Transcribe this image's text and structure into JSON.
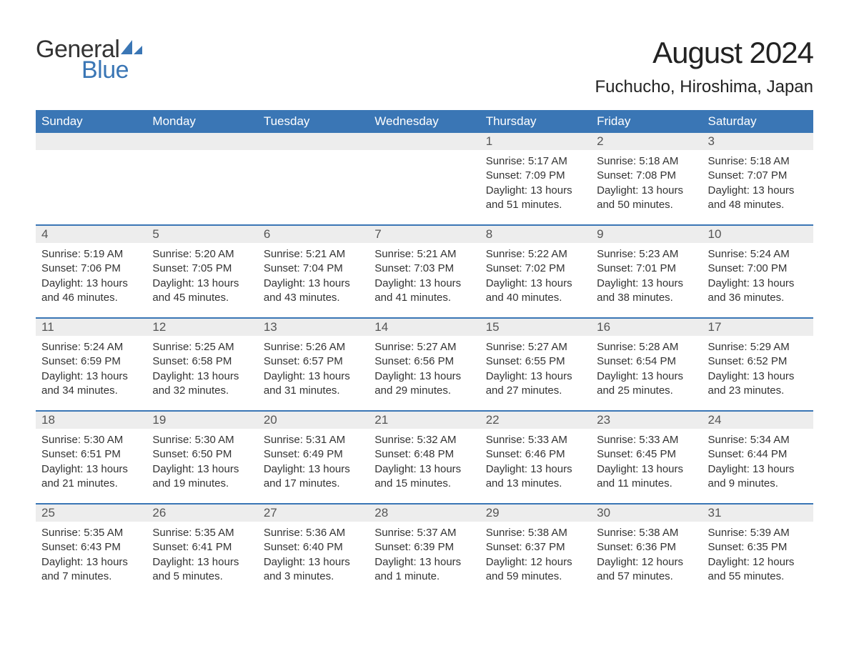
{
  "brand": {
    "general": "General",
    "blue": "Blue",
    "sail_color": "#3a76b5"
  },
  "header": {
    "month_title": "August 2024",
    "location": "Fuchucho, Hiroshima, Japan"
  },
  "styles": {
    "header_bg": "#3a76b5",
    "header_text": "#ffffff",
    "daynum_bg": "#ededed",
    "week_divider": "#3a76b5",
    "body_text": "#333333",
    "title_fontsize_pt": 32,
    "location_fontsize_pt": 18,
    "dow_fontsize_pt": 13,
    "body_fontsize_pt": 11
  },
  "days_of_week": [
    "Sunday",
    "Monday",
    "Tuesday",
    "Wednesday",
    "Thursday",
    "Friday",
    "Saturday"
  ],
  "weeks": [
    [
      {
        "empty": true
      },
      {
        "empty": true
      },
      {
        "empty": true
      },
      {
        "empty": true
      },
      {
        "day": "1",
        "sunrise": "Sunrise: 5:17 AM",
        "sunset": "Sunset: 7:09 PM",
        "daylight": "Daylight: 13 hours and 51 minutes."
      },
      {
        "day": "2",
        "sunrise": "Sunrise: 5:18 AM",
        "sunset": "Sunset: 7:08 PM",
        "daylight": "Daylight: 13 hours and 50 minutes."
      },
      {
        "day": "3",
        "sunrise": "Sunrise: 5:18 AM",
        "sunset": "Sunset: 7:07 PM",
        "daylight": "Daylight: 13 hours and 48 minutes."
      }
    ],
    [
      {
        "day": "4",
        "sunrise": "Sunrise: 5:19 AM",
        "sunset": "Sunset: 7:06 PM",
        "daylight": "Daylight: 13 hours and 46 minutes."
      },
      {
        "day": "5",
        "sunrise": "Sunrise: 5:20 AM",
        "sunset": "Sunset: 7:05 PM",
        "daylight": "Daylight: 13 hours and 45 minutes."
      },
      {
        "day": "6",
        "sunrise": "Sunrise: 5:21 AM",
        "sunset": "Sunset: 7:04 PM",
        "daylight": "Daylight: 13 hours and 43 minutes."
      },
      {
        "day": "7",
        "sunrise": "Sunrise: 5:21 AM",
        "sunset": "Sunset: 7:03 PM",
        "daylight": "Daylight: 13 hours and 41 minutes."
      },
      {
        "day": "8",
        "sunrise": "Sunrise: 5:22 AM",
        "sunset": "Sunset: 7:02 PM",
        "daylight": "Daylight: 13 hours and 40 minutes."
      },
      {
        "day": "9",
        "sunrise": "Sunrise: 5:23 AM",
        "sunset": "Sunset: 7:01 PM",
        "daylight": "Daylight: 13 hours and 38 minutes."
      },
      {
        "day": "10",
        "sunrise": "Sunrise: 5:24 AM",
        "sunset": "Sunset: 7:00 PM",
        "daylight": "Daylight: 13 hours and 36 minutes."
      }
    ],
    [
      {
        "day": "11",
        "sunrise": "Sunrise: 5:24 AM",
        "sunset": "Sunset: 6:59 PM",
        "daylight": "Daylight: 13 hours and 34 minutes."
      },
      {
        "day": "12",
        "sunrise": "Sunrise: 5:25 AM",
        "sunset": "Sunset: 6:58 PM",
        "daylight": "Daylight: 13 hours and 32 minutes."
      },
      {
        "day": "13",
        "sunrise": "Sunrise: 5:26 AM",
        "sunset": "Sunset: 6:57 PM",
        "daylight": "Daylight: 13 hours and 31 minutes."
      },
      {
        "day": "14",
        "sunrise": "Sunrise: 5:27 AM",
        "sunset": "Sunset: 6:56 PM",
        "daylight": "Daylight: 13 hours and 29 minutes."
      },
      {
        "day": "15",
        "sunrise": "Sunrise: 5:27 AM",
        "sunset": "Sunset: 6:55 PM",
        "daylight": "Daylight: 13 hours and 27 minutes."
      },
      {
        "day": "16",
        "sunrise": "Sunrise: 5:28 AM",
        "sunset": "Sunset: 6:54 PM",
        "daylight": "Daylight: 13 hours and 25 minutes."
      },
      {
        "day": "17",
        "sunrise": "Sunrise: 5:29 AM",
        "sunset": "Sunset: 6:52 PM",
        "daylight": "Daylight: 13 hours and 23 minutes."
      }
    ],
    [
      {
        "day": "18",
        "sunrise": "Sunrise: 5:30 AM",
        "sunset": "Sunset: 6:51 PM",
        "daylight": "Daylight: 13 hours and 21 minutes."
      },
      {
        "day": "19",
        "sunrise": "Sunrise: 5:30 AM",
        "sunset": "Sunset: 6:50 PM",
        "daylight": "Daylight: 13 hours and 19 minutes."
      },
      {
        "day": "20",
        "sunrise": "Sunrise: 5:31 AM",
        "sunset": "Sunset: 6:49 PM",
        "daylight": "Daylight: 13 hours and 17 minutes."
      },
      {
        "day": "21",
        "sunrise": "Sunrise: 5:32 AM",
        "sunset": "Sunset: 6:48 PM",
        "daylight": "Daylight: 13 hours and 15 minutes."
      },
      {
        "day": "22",
        "sunrise": "Sunrise: 5:33 AM",
        "sunset": "Sunset: 6:46 PM",
        "daylight": "Daylight: 13 hours and 13 minutes."
      },
      {
        "day": "23",
        "sunrise": "Sunrise: 5:33 AM",
        "sunset": "Sunset: 6:45 PM",
        "daylight": "Daylight: 13 hours and 11 minutes."
      },
      {
        "day": "24",
        "sunrise": "Sunrise: 5:34 AM",
        "sunset": "Sunset: 6:44 PM",
        "daylight": "Daylight: 13 hours and 9 minutes."
      }
    ],
    [
      {
        "day": "25",
        "sunrise": "Sunrise: 5:35 AM",
        "sunset": "Sunset: 6:43 PM",
        "daylight": "Daylight: 13 hours and 7 minutes."
      },
      {
        "day": "26",
        "sunrise": "Sunrise: 5:35 AM",
        "sunset": "Sunset: 6:41 PM",
        "daylight": "Daylight: 13 hours and 5 minutes."
      },
      {
        "day": "27",
        "sunrise": "Sunrise: 5:36 AM",
        "sunset": "Sunset: 6:40 PM",
        "daylight": "Daylight: 13 hours and 3 minutes."
      },
      {
        "day": "28",
        "sunrise": "Sunrise: 5:37 AM",
        "sunset": "Sunset: 6:39 PM",
        "daylight": "Daylight: 13 hours and 1 minute."
      },
      {
        "day": "29",
        "sunrise": "Sunrise: 5:38 AM",
        "sunset": "Sunset: 6:37 PM",
        "daylight": "Daylight: 12 hours and 59 minutes."
      },
      {
        "day": "30",
        "sunrise": "Sunrise: 5:38 AM",
        "sunset": "Sunset: 6:36 PM",
        "daylight": "Daylight: 12 hours and 57 minutes."
      },
      {
        "day": "31",
        "sunrise": "Sunrise: 5:39 AM",
        "sunset": "Sunset: 6:35 PM",
        "daylight": "Daylight: 12 hours and 55 minutes."
      }
    ]
  ]
}
